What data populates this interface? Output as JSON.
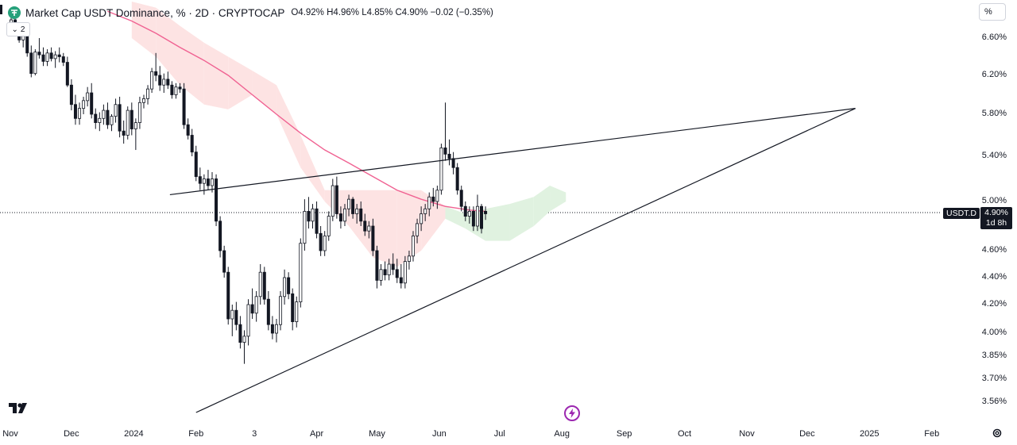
{
  "header": {
    "symbol": "Market Cap USDT Dominance, % · 2D · CRYPTOCAP",
    "open": "O4.92%",
    "high": "H4.96%",
    "low": "L4.85%",
    "close": "C4.90%",
    "change": "−0.02 (−0.35%)",
    "indicator_toggle": "2",
    "scale_mode": "%"
  },
  "price_tag": {
    "symbol": "USDT.D",
    "price": "4.90%",
    "countdown": "1d 8h"
  },
  "colors": {
    "bull": "#131722",
    "bear": "#131722",
    "ma_line": "#f06292",
    "cloud_bear": "#fde3e3",
    "cloud_bull": "#e0f2e0",
    "trendline": "#131722"
  },
  "icons": {
    "logo": "tether-logo-icon",
    "toggle": "chevron-down-icon",
    "lightning": "lightning-icon",
    "settings": "gear-icon",
    "brand": "tradingview-logo-icon"
  },
  "chart_data": {
    "type": "candlestick",
    "title": "Market Cap USDT Dominance, % · 2D · CRYPTOCAP",
    "y_axis": {
      "scale": "log",
      "ticks": [
        "6.60%",
        "6.20%",
        "5.80%",
        "5.40%",
        "5.00%",
        "4.60%",
        "4.40%",
        "4.20%",
        "4.00%",
        "3.85%",
        "3.70%",
        "3.56%"
      ],
      "tick_values": [
        6.6,
        6.2,
        5.8,
        5.4,
        5.0,
        4.6,
        4.4,
        4.2,
        4.0,
        3.85,
        3.7,
        3.56
      ],
      "range": [
        3.5,
        6.9
      ]
    },
    "x_axis": {
      "ticks": [
        "Nov",
        "Dec",
        "2024",
        "Feb",
        "3",
        "Apr",
        "May",
        "Jun",
        "Jul",
        "Aug",
        "Sep",
        "Oct",
        "Nov",
        "Dec",
        "2025",
        "Feb"
      ],
      "tick_days": [
        0,
        30,
        61,
        92,
        121,
        152,
        182,
        213,
        243,
        274,
        305,
        335,
        366,
        396,
        427,
        458
      ]
    },
    "last_price": 4.9,
    "candles": [
      {
        "d": 0,
        "o": 6.7,
        "h": 6.8,
        "l": 6.62,
        "c": 6.75
      },
      {
        "d": 2,
        "o": 6.75,
        "h": 6.82,
        "l": 6.63,
        "c": 6.66
      },
      {
        "d": 4,
        "o": 6.66,
        "h": 6.7,
        "l": 6.55,
        "c": 6.58
      },
      {
        "d": 6,
        "o": 6.58,
        "h": 6.66,
        "l": 6.5,
        "c": 6.62
      },
      {
        "d": 8,
        "o": 6.62,
        "h": 6.68,
        "l": 6.4,
        "c": 6.44
      },
      {
        "d": 10,
        "o": 6.44,
        "h": 6.52,
        "l": 6.18,
        "c": 6.22
      },
      {
        "d": 12,
        "o": 6.22,
        "h": 6.48,
        "l": 6.2,
        "c": 6.45
      },
      {
        "d": 14,
        "o": 6.45,
        "h": 6.6,
        "l": 6.38,
        "c": 6.42
      },
      {
        "d": 16,
        "o": 6.42,
        "h": 6.5,
        "l": 6.3,
        "c": 6.35
      },
      {
        "d": 18,
        "o": 6.35,
        "h": 6.48,
        "l": 6.3,
        "c": 6.44
      },
      {
        "d": 20,
        "o": 6.44,
        "h": 6.5,
        "l": 6.35,
        "c": 6.38
      },
      {
        "d": 22,
        "o": 6.38,
        "h": 6.46,
        "l": 6.28,
        "c": 6.42
      },
      {
        "d": 24,
        "o": 6.42,
        "h": 6.5,
        "l": 6.34,
        "c": 6.4
      },
      {
        "d": 26,
        "o": 6.4,
        "h": 6.44,
        "l": 6.3,
        "c": 6.34
      },
      {
        "d": 28,
        "o": 6.34,
        "h": 6.4,
        "l": 6.08,
        "c": 6.1
      },
      {
        "d": 30,
        "o": 6.1,
        "h": 6.16,
        "l": 5.84,
        "c": 5.9
      },
      {
        "d": 32,
        "o": 5.9,
        "h": 6.0,
        "l": 5.7,
        "c": 5.76
      },
      {
        "d": 34,
        "o": 5.76,
        "h": 5.92,
        "l": 5.7,
        "c": 5.86
      },
      {
        "d": 36,
        "o": 5.86,
        "h": 5.98,
        "l": 5.8,
        "c": 5.94
      },
      {
        "d": 38,
        "o": 5.94,
        "h": 6.08,
        "l": 5.88,
        "c": 6.02
      },
      {
        "d": 40,
        "o": 6.02,
        "h": 6.12,
        "l": 5.76,
        "c": 5.8
      },
      {
        "d": 42,
        "o": 5.8,
        "h": 5.86,
        "l": 5.66,
        "c": 5.72
      },
      {
        "d": 44,
        "o": 5.72,
        "h": 5.82,
        "l": 5.64,
        "c": 5.76
      },
      {
        "d": 46,
        "o": 5.76,
        "h": 5.9,
        "l": 5.7,
        "c": 5.84
      },
      {
        "d": 48,
        "o": 5.84,
        "h": 5.92,
        "l": 5.66,
        "c": 5.7
      },
      {
        "d": 50,
        "o": 5.7,
        "h": 5.8,
        "l": 5.64,
        "c": 5.78
      },
      {
        "d": 52,
        "o": 5.78,
        "h": 5.96,
        "l": 5.72,
        "c": 5.9
      },
      {
        "d": 54,
        "o": 5.9,
        "h": 5.98,
        "l": 5.58,
        "c": 5.64
      },
      {
        "d": 56,
        "o": 5.64,
        "h": 5.74,
        "l": 5.52,
        "c": 5.6
      },
      {
        "d": 58,
        "o": 5.6,
        "h": 5.88,
        "l": 5.56,
        "c": 5.84
      },
      {
        "d": 60,
        "o": 5.84,
        "h": 5.92,
        "l": 5.6,
        "c": 5.66
      },
      {
        "d": 62,
        "o": 5.66,
        "h": 5.76,
        "l": 5.46,
        "c": 5.72
      },
      {
        "d": 64,
        "o": 5.72,
        "h": 5.98,
        "l": 5.66,
        "c": 5.92
      },
      {
        "d": 66,
        "o": 5.92,
        "h": 6.0,
        "l": 5.86,
        "c": 5.96
      },
      {
        "d": 68,
        "o": 5.96,
        "h": 6.1,
        "l": 5.9,
        "c": 6.06
      },
      {
        "d": 70,
        "o": 6.06,
        "h": 6.28,
        "l": 6.02,
        "c": 6.24
      },
      {
        "d": 72,
        "o": 6.24,
        "h": 6.44,
        "l": 6.14,
        "c": 6.2
      },
      {
        "d": 74,
        "o": 6.2,
        "h": 6.3,
        "l": 6.04,
        "c": 6.1
      },
      {
        "d": 76,
        "o": 6.1,
        "h": 6.22,
        "l": 6.02,
        "c": 6.16
      },
      {
        "d": 78,
        "o": 6.16,
        "h": 6.24,
        "l": 6.06,
        "c": 6.1
      },
      {
        "d": 80,
        "o": 6.1,
        "h": 6.14,
        "l": 5.96,
        "c": 6.0
      },
      {
        "d": 82,
        "o": 6.0,
        "h": 6.12,
        "l": 5.96,
        "c": 6.08
      },
      {
        "d": 84,
        "o": 6.08,
        "h": 6.12,
        "l": 6.02,
        "c": 6.06
      },
      {
        "d": 86,
        "o": 6.06,
        "h": 6.12,
        "l": 5.66,
        "c": 5.7
      },
      {
        "d": 88,
        "o": 5.7,
        "h": 5.76,
        "l": 5.56,
        "c": 5.6
      },
      {
        "d": 90,
        "o": 5.6,
        "h": 5.66,
        "l": 5.4,
        "c": 5.44
      },
      {
        "d": 92,
        "o": 5.44,
        "h": 5.5,
        "l": 5.18,
        "c": 5.22
      },
      {
        "d": 94,
        "o": 5.22,
        "h": 5.3,
        "l": 5.1,
        "c": 5.16
      },
      {
        "d": 96,
        "o": 5.16,
        "h": 5.24,
        "l": 5.06,
        "c": 5.2
      },
      {
        "d": 98,
        "o": 5.2,
        "h": 5.28,
        "l": 5.1,
        "c": 5.14
      },
      {
        "d": 100,
        "o": 5.14,
        "h": 5.26,
        "l": 5.08,
        "c": 5.2
      },
      {
        "d": 102,
        "o": 5.2,
        "h": 5.24,
        "l": 4.8,
        "c": 4.84
      },
      {
        "d": 104,
        "o": 4.84,
        "h": 4.88,
        "l": 4.55,
        "c": 4.6
      },
      {
        "d": 106,
        "o": 4.6,
        "h": 4.64,
        "l": 4.4,
        "c": 4.44
      },
      {
        "d": 108,
        "o": 4.44,
        "h": 4.48,
        "l": 4.06,
        "c": 4.1
      },
      {
        "d": 110,
        "o": 4.1,
        "h": 4.2,
        "l": 3.98,
        "c": 4.16
      },
      {
        "d": 112,
        "o": 4.16,
        "h": 4.22,
        "l": 4.02,
        "c": 4.06
      },
      {
        "d": 114,
        "o": 4.06,
        "h": 4.12,
        "l": 3.9,
        "c": 3.94
      },
      {
        "d": 116,
        "o": 3.94,
        "h": 4.02,
        "l": 3.8,
        "c": 3.98
      },
      {
        "d": 118,
        "o": 3.98,
        "h": 4.24,
        "l": 3.92,
        "c": 4.2
      },
      {
        "d": 120,
        "o": 4.2,
        "h": 4.32,
        "l": 4.1,
        "c": 4.14
      },
      {
        "d": 122,
        "o": 4.14,
        "h": 4.3,
        "l": 4.08,
        "c": 4.26
      },
      {
        "d": 124,
        "o": 4.26,
        "h": 4.5,
        "l": 4.2,
        "c": 4.44
      },
      {
        "d": 126,
        "o": 4.44,
        "h": 4.48,
        "l": 4.2,
        "c": 4.24
      },
      {
        "d": 128,
        "o": 4.24,
        "h": 4.3,
        "l": 4.02,
        "c": 4.06
      },
      {
        "d": 130,
        "o": 4.06,
        "h": 4.12,
        "l": 3.96,
        "c": 4.0
      },
      {
        "d": 132,
        "o": 4.0,
        "h": 4.1,
        "l": 3.94,
        "c": 4.06
      },
      {
        "d": 134,
        "o": 4.06,
        "h": 4.3,
        "l": 4.02,
        "c": 4.26
      },
      {
        "d": 136,
        "o": 4.26,
        "h": 4.46,
        "l": 4.2,
        "c": 4.4
      },
      {
        "d": 138,
        "o": 4.4,
        "h": 4.44,
        "l": 4.24,
        "c": 4.28
      },
      {
        "d": 140,
        "o": 4.28,
        "h": 4.32,
        "l": 4.02,
        "c": 4.08
      },
      {
        "d": 142,
        "o": 4.08,
        "h": 4.26,
        "l": 4.04,
        "c": 4.22
      },
      {
        "d": 144,
        "o": 4.22,
        "h": 4.7,
        "l": 4.18,
        "c": 4.66
      },
      {
        "d": 146,
        "o": 4.66,
        "h": 5.02,
        "l": 4.6,
        "c": 4.92
      },
      {
        "d": 148,
        "o": 4.92,
        "h": 5.04,
        "l": 4.78,
        "c": 4.84
      },
      {
        "d": 150,
        "o": 4.84,
        "h": 4.98,
        "l": 4.78,
        "c": 4.94
      },
      {
        "d": 152,
        "o": 4.94,
        "h": 5.0,
        "l": 4.7,
        "c": 4.74
      },
      {
        "d": 154,
        "o": 4.74,
        "h": 4.8,
        "l": 4.56,
        "c": 4.6
      },
      {
        "d": 156,
        "o": 4.6,
        "h": 4.76,
        "l": 4.56,
        "c": 4.72
      },
      {
        "d": 158,
        "o": 4.72,
        "h": 4.92,
        "l": 4.68,
        "c": 4.88
      },
      {
        "d": 160,
        "o": 4.88,
        "h": 5.2,
        "l": 4.84,
        "c": 5.14
      },
      {
        "d": 162,
        "o": 5.14,
        "h": 5.22,
        "l": 4.86,
        "c": 4.9
      },
      {
        "d": 164,
        "o": 4.9,
        "h": 4.96,
        "l": 4.78,
        "c": 4.84
      },
      {
        "d": 166,
        "o": 4.84,
        "h": 4.98,
        "l": 4.8,
        "c": 4.94
      },
      {
        "d": 168,
        "o": 4.94,
        "h": 5.06,
        "l": 4.88,
        "c": 5.02
      },
      {
        "d": 170,
        "o": 5.02,
        "h": 5.04,
        "l": 4.86,
        "c": 4.9
      },
      {
        "d": 172,
        "o": 4.9,
        "h": 4.98,
        "l": 4.82,
        "c": 4.94
      },
      {
        "d": 174,
        "o": 4.94,
        "h": 5.0,
        "l": 4.8,
        "c": 4.84
      },
      {
        "d": 176,
        "o": 4.84,
        "h": 4.9,
        "l": 4.72,
        "c": 4.76
      },
      {
        "d": 178,
        "o": 4.76,
        "h": 4.84,
        "l": 4.7,
        "c": 4.8
      },
      {
        "d": 180,
        "o": 4.8,
        "h": 4.86,
        "l": 4.56,
        "c": 4.6
      },
      {
        "d": 182,
        "o": 4.6,
        "h": 4.64,
        "l": 4.32,
        "c": 4.38
      },
      {
        "d": 184,
        "o": 4.38,
        "h": 4.5,
        "l": 4.34,
        "c": 4.46
      },
      {
        "d": 186,
        "o": 4.46,
        "h": 4.52,
        "l": 4.38,
        "c": 4.42
      },
      {
        "d": 188,
        "o": 4.42,
        "h": 4.54,
        "l": 4.38,
        "c": 4.5
      },
      {
        "d": 190,
        "o": 4.5,
        "h": 4.58,
        "l": 4.42,
        "c": 4.46
      },
      {
        "d": 192,
        "o": 4.46,
        "h": 4.54,
        "l": 4.36,
        "c": 4.4
      },
      {
        "d": 194,
        "o": 4.4,
        "h": 4.5,
        "l": 4.32,
        "c": 4.36
      },
      {
        "d": 196,
        "o": 4.36,
        "h": 4.56,
        "l": 4.32,
        "c": 4.52
      },
      {
        "d": 198,
        "o": 4.52,
        "h": 4.6,
        "l": 4.46,
        "c": 4.56
      },
      {
        "d": 200,
        "o": 4.56,
        "h": 4.76,
        "l": 4.52,
        "c": 4.72
      },
      {
        "d": 202,
        "o": 4.72,
        "h": 4.86,
        "l": 4.66,
        "c": 4.82
      },
      {
        "d": 204,
        "o": 4.82,
        "h": 4.96,
        "l": 4.76,
        "c": 4.9
      },
      {
        "d": 206,
        "o": 4.9,
        "h": 4.98,
        "l": 4.84,
        "c": 4.94
      },
      {
        "d": 208,
        "o": 4.94,
        "h": 5.08,
        "l": 4.88,
        "c": 5.04
      },
      {
        "d": 210,
        "o": 5.04,
        "h": 5.12,
        "l": 4.96,
        "c": 5.0
      },
      {
        "d": 212,
        "o": 5.0,
        "h": 5.14,
        "l": 4.94,
        "c": 5.1
      },
      {
        "d": 214,
        "o": 5.1,
        "h": 5.52,
        "l": 5.06,
        "c": 5.48
      },
      {
        "d": 216,
        "o": 5.48,
        "h": 5.92,
        "l": 5.36,
        "c": 5.42
      },
      {
        "d": 218,
        "o": 5.42,
        "h": 5.56,
        "l": 5.32,
        "c": 5.38
      },
      {
        "d": 220,
        "o": 5.38,
        "h": 5.44,
        "l": 5.24,
        "c": 5.3
      },
      {
        "d": 222,
        "o": 5.3,
        "h": 5.34,
        "l": 5.06,
        "c": 5.1
      },
      {
        "d": 224,
        "o": 5.1,
        "h": 5.14,
        "l": 4.92,
        "c": 4.96
      },
      {
        "d": 226,
        "o": 4.96,
        "h": 5.0,
        "l": 4.84,
        "c": 4.88
      },
      {
        "d": 228,
        "o": 4.88,
        "h": 4.96,
        "l": 4.82,
        "c": 4.92
      },
      {
        "d": 230,
        "o": 4.92,
        "h": 4.96,
        "l": 4.76,
        "c": 4.8
      },
      {
        "d": 232,
        "o": 4.8,
        "h": 5.06,
        "l": 4.76,
        "c": 4.96
      },
      {
        "d": 234,
        "o": 4.96,
        "h": 4.98,
        "l": 4.74,
        "c": 4.78
      },
      {
        "d": 236,
        "o": 4.92,
        "h": 4.96,
        "l": 4.85,
        "c": 4.9
      }
    ],
    "ma_line": [
      {
        "d": 48,
        "v": 6.82
      },
      {
        "d": 60,
        "v": 6.74
      },
      {
        "d": 72,
        "v": 6.64
      },
      {
        "d": 84,
        "v": 6.5
      },
      {
        "d": 96,
        "v": 6.36
      },
      {
        "d": 108,
        "v": 6.2
      },
      {
        "d": 120,
        "v": 6.0
      },
      {
        "d": 132,
        "v": 5.8
      },
      {
        "d": 144,
        "v": 5.62
      },
      {
        "d": 156,
        "v": 5.46
      },
      {
        "d": 168,
        "v": 5.34
      },
      {
        "d": 180,
        "v": 5.22
      },
      {
        "d": 192,
        "v": 5.1
      },
      {
        "d": 204,
        "v": 5.02
      },
      {
        "d": 216,
        "v": 4.96
      },
      {
        "d": 228,
        "v": 4.93
      },
      {
        "d": 236,
        "v": 4.92
      }
    ],
    "cloud": [
      {
        "d": 60,
        "a": 6.9,
        "b": 6.6,
        "color": "bear"
      },
      {
        "d": 72,
        "a": 6.85,
        "b": 6.4,
        "color": "bear"
      },
      {
        "d": 84,
        "a": 6.7,
        "b": 6.1,
        "color": "bear"
      },
      {
        "d": 96,
        "a": 6.55,
        "b": 5.9,
        "color": "bear"
      },
      {
        "d": 108,
        "a": 6.4,
        "b": 5.85,
        "color": "bear"
      },
      {
        "d": 120,
        "a": 6.25,
        "b": 6.0,
        "color": "bear"
      },
      {
        "d": 132,
        "a": 6.1,
        "b": 5.8,
        "color": "bear"
      },
      {
        "d": 144,
        "a": 5.6,
        "b": 5.3,
        "color": "bear"
      },
      {
        "d": 156,
        "a": 5.1,
        "b": 5.0,
        "color": "bear"
      },
      {
        "d": 168,
        "a": 5.1,
        "b": 4.8,
        "color": "bear"
      },
      {
        "d": 180,
        "a": 5.1,
        "b": 4.55,
        "color": "bear"
      },
      {
        "d": 192,
        "a": 5.1,
        "b": 4.48,
        "color": "bear"
      },
      {
        "d": 204,
        "a": 5.1,
        "b": 4.6,
        "color": "bear"
      },
      {
        "d": 216,
        "a": 4.96,
        "b": 4.86,
        "color": "bear"
      },
      {
        "d": 226,
        "a": 4.9,
        "b": 4.78,
        "color": "bull"
      },
      {
        "d": 236,
        "a": 4.94,
        "b": 4.68,
        "color": "bull"
      },
      {
        "d": 248,
        "a": 4.98,
        "b": 4.68,
        "color": "bull"
      },
      {
        "d": 260,
        "a": 5.04,
        "b": 4.8,
        "color": "bull"
      },
      {
        "d": 268,
        "a": 5.14,
        "b": 4.92,
        "color": "bull"
      },
      {
        "d": 276,
        "a": 5.08,
        "b": 5.0,
        "color": "bull"
      }
    ],
    "trendlines": [
      {
        "from": {
          "d": 79,
          "v": 5.06
        },
        "to": {
          "d": 420,
          "v": 5.86
        }
      },
      {
        "from": {
          "d": 92,
          "v": 3.5
        },
        "to": {
          "d": 420,
          "v": 5.86
        }
      }
    ]
  }
}
